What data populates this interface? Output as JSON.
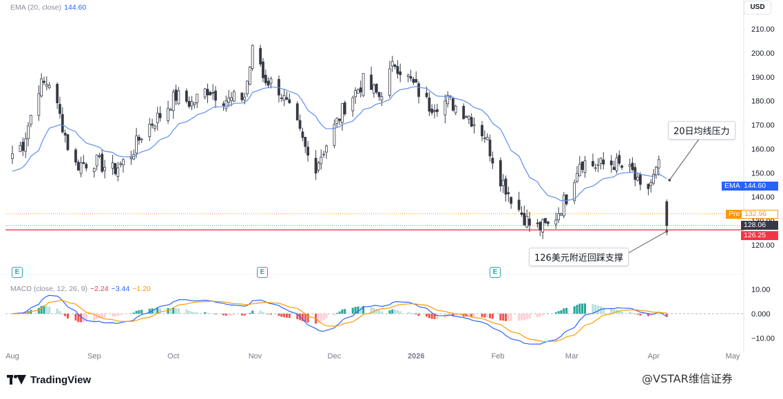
{
  "legend": {
    "ema_label": "EMA (20, close)",
    "ema_value": "144.60",
    "macd_label": "MACD (close, 12, 26, 9)",
    "macd_hist_value": "−2.24",
    "macd_line_value": "−3.44",
    "macd_signal_value": "−1.20"
  },
  "currency": "USD",
  "annotations": {
    "resistance": "20日均线压力",
    "support": "126美元附近回踩支撑"
  },
  "price_tags": {
    "ema_label": "EMA",
    "ema_value": "144.60",
    "pre_label": "Pre",
    "pre_value": "132.96",
    "last_value": "128.06",
    "support_value": "126.25"
  },
  "earnings_badge": "E",
  "brand": "TradingView",
  "watermark": "@VSTAR维信证券",
  "colors": {
    "up": "#ffffff",
    "down": "#363a45",
    "ema": "#5b8def",
    "macd_line": "#2962ff",
    "signal_line": "#ff9800",
    "hist_pos_strong": "#26a69a",
    "hist_pos_weak": "#b2dfdb",
    "hist_neg_strong": "#ef5350",
    "hist_neg_weak": "#ffcdd2",
    "support_line": "#f23645",
    "pre_color": "#ff9800",
    "ema_tag": "#2962ff"
  },
  "chart_data": [
    {
      "type": "candlestick",
      "title": "",
      "ylabel": "USD",
      "ylim": [
        115,
        213
      ],
      "price_ticks": [
        120,
        130,
        140,
        150,
        160,
        170,
        180,
        190,
        200,
        210
      ],
      "x_ticks": [
        "Aug",
        "Sep",
        "Oct",
        "Nov",
        "Dec",
        "2026",
        "Feb",
        "Mar",
        "Apr",
        "May"
      ],
      "ema_period": 20,
      "ema_last": 144.6,
      "levels": {
        "pre": 132.96,
        "last": 128.06,
        "support": 126.25
      },
      "ohlc_anchors": [
        {
          "date": "Aug 1",
          "close": 158
        },
        {
          "date": "Aug 5",
          "close": 162
        },
        {
          "date": "Aug 11",
          "close": 186
        },
        {
          "date": "Aug 15",
          "close": 188
        },
        {
          "date": "Aug 20",
          "close": 170
        },
        {
          "date": "Aug 24",
          "close": 153
        },
        {
          "date": "Sep 1",
          "close": 155
        },
        {
          "date": "Sep 8",
          "close": 151
        },
        {
          "date": "Sep 14",
          "close": 156
        },
        {
          "date": "Sep 20",
          "close": 168
        },
        {
          "date": "Sep 26",
          "close": 174
        },
        {
          "date": "Oct 2",
          "close": 182
        },
        {
          "date": "Oct 8",
          "close": 179
        },
        {
          "date": "Oct 14",
          "close": 185
        },
        {
          "date": "Oct 22",
          "close": 180
        },
        {
          "date": "Oct 28",
          "close": 182
        },
        {
          "date": "Nov 1",
          "close": 207
        },
        {
          "date": "Nov 4",
          "close": 190
        },
        {
          "date": "Nov 10",
          "close": 185
        },
        {
          "date": "Nov 17",
          "close": 169
        },
        {
          "date": "Nov 23",
          "close": 151
        },
        {
          "date": "Nov 28",
          "close": 162
        },
        {
          "date": "Dec 5",
          "close": 178
        },
        {
          "date": "Dec 12",
          "close": 188
        },
        {
          "date": "Dec 18",
          "close": 182
        },
        {
          "date": "Dec 24",
          "close": 196
        },
        {
          "date": "Dec 30",
          "close": 188
        },
        {
          "date": "Jan 6",
          "close": 178
        },
        {
          "date": "Jan 13",
          "close": 180
        },
        {
          "date": "Jan 20",
          "close": 175
        },
        {
          "date": "Jan 27",
          "close": 166
        },
        {
          "date": "Feb 1",
          "close": 150
        },
        {
          "date": "Feb 7",
          "close": 138
        },
        {
          "date": "Feb 14",
          "close": 127
        },
        {
          "date": "Feb 21",
          "close": 128
        },
        {
          "date": "Feb 27",
          "close": 140
        },
        {
          "date": "Mar 4",
          "close": 155
        },
        {
          "date": "Mar 10",
          "close": 153
        },
        {
          "date": "Mar 17",
          "close": 154
        },
        {
          "date": "Mar 24",
          "close": 150
        },
        {
          "date": "Mar 28",
          "close": 140
        },
        {
          "date": "Apr 1",
          "close": 148
        },
        {
          "date": "Apr 4",
          "close": 155
        },
        {
          "date": "Apr 6",
          "close": 128
        }
      ]
    },
    {
      "type": "macd",
      "params": [
        12,
        26,
        9
      ],
      "ylim": [
        -12,
        12
      ],
      "ticks": [
        -10,
        0,
        10
      ],
      "tick_labels": [
        "−10.00",
        "0.000",
        "10.00"
      ],
      "latest": {
        "histogram": -2.24,
        "macd": -3.44,
        "signal": -1.2
      }
    }
  ]
}
